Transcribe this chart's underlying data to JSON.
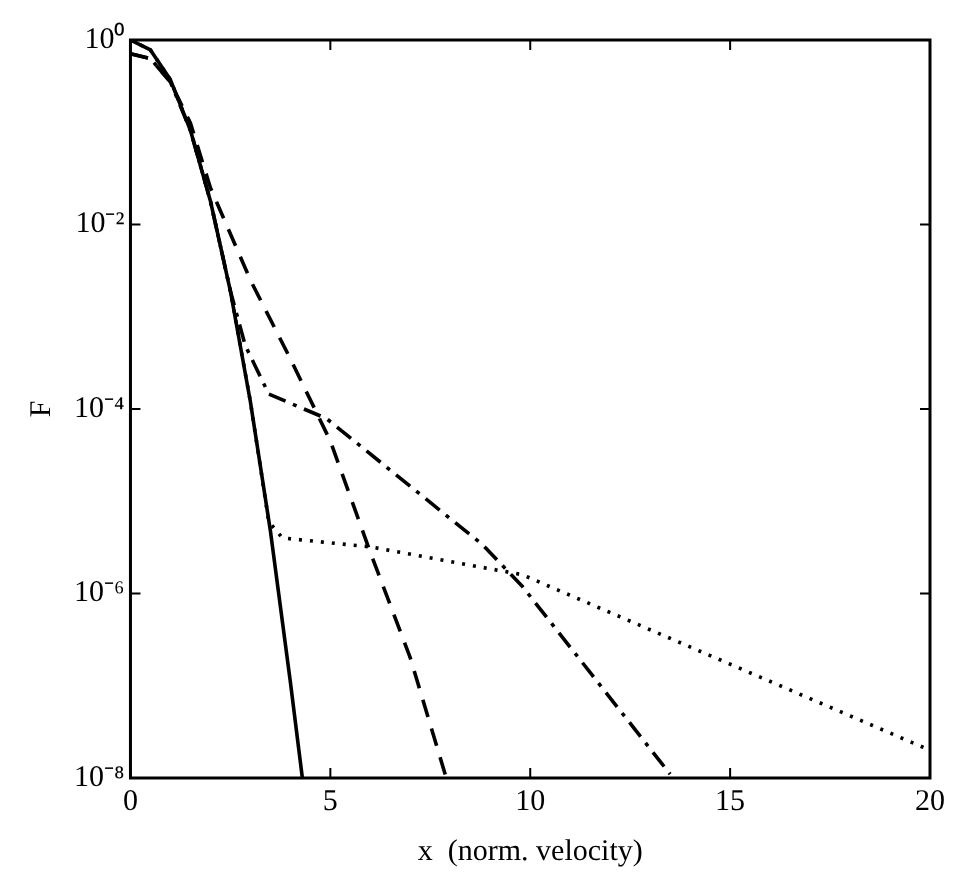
{
  "chart_data": {
    "type": "line",
    "xlabel": "x  (norm. velocity)",
    "ylabel": "F",
    "log": "y",
    "grid": false,
    "legend": false,
    "marker": "none",
    "xlim": [
      0,
      20
    ],
    "xticks": [
      0,
      5,
      10,
      15,
      20
    ],
    "ylim": [
      1e-08,
      1
    ],
    "yticks": [
      {
        "value": 1e-08,
        "label": "10⁻⁸"
      },
      {
        "value": 1e-06,
        "label": "10⁻⁶"
      },
      {
        "value": 0.0001,
        "label": "10⁻⁴"
      },
      {
        "value": 0.01,
        "label": "10⁻²"
      },
      {
        "value": 1,
        "label": "10⁰"
      }
    ],
    "series": [
      {
        "color": "#000000",
        "line_style": "solid",
        "x": [
          0,
          0.5,
          1,
          1.5,
          2,
          2.5,
          3,
          3.5,
          4,
          4.3
        ],
        "values": [
          1,
          0.78,
          0.37,
          0.105,
          0.018,
          0.0019,
          0.00012,
          4.8e-06,
          1.1e-07,
          1e-08
        ]
      },
      {
        "color": "#000000",
        "line_style": "dashed",
        "x": [
          0,
          0.5,
          1,
          1.5,
          2,
          3,
          4,
          5,
          6,
          7,
          7.9
        ],
        "values": [
          0.71,
          0.63,
          0.35,
          0.126,
          0.025,
          0.0025,
          0.00035,
          4.5e-05,
          2.8e-06,
          2e-07,
          1e-08
        ]
      },
      {
        "color": "#000000",
        "line_style": "dashdot",
        "x": [
          0,
          0.5,
          1,
          1.5,
          2,
          2.5,
          2.87,
          3.46,
          4.9,
          8.8,
          9.8,
          13.5
        ],
        "values": [
          0.71,
          0.63,
          0.35,
          0.105,
          0.018,
          0.0019,
          0.00049,
          0.000145,
          7.9e-05,
          3.4e-06,
          1.2e-06,
          1.1e-08
        ]
      },
      {
        "color": "#000000",
        "line_style": "dotted",
        "x": [
          0,
          0.5,
          1,
          1.5,
          2,
          2.5,
          3,
          3.46,
          3.8,
          6,
          9.8,
          20
        ],
        "values": [
          1,
          0.78,
          0.37,
          0.105,
          0.018,
          0.0019,
          0.00012,
          6e-06,
          4e-06,
          3.2e-06,
          1.6e-06,
          2e-08
        ]
      }
    ]
  }
}
